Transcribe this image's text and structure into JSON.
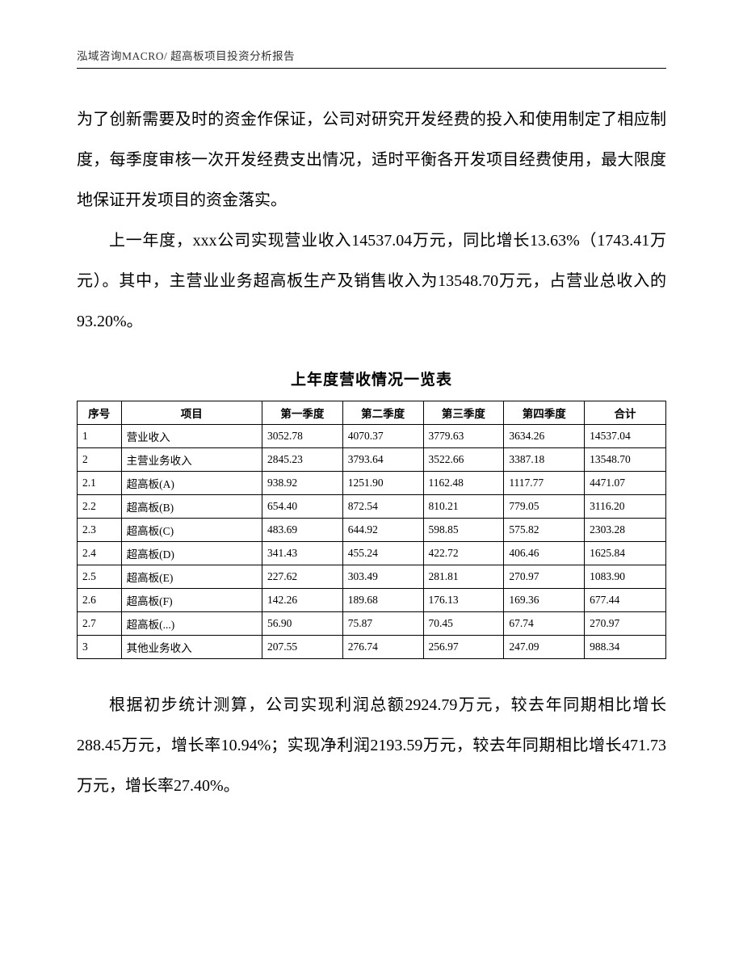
{
  "header": {
    "text": "泓域咨询MACRO/   超高板项目投资分析报告"
  },
  "paragraphs": {
    "p1": "为了创新需要及时的资金作保证，公司对研究开发经费的投入和使用制定了相应制度，每季度审核一次开发经费支出情况，适时平衡各开发项目经费使用，最大限度地保证开发项目的资金落实。",
    "p2": "上一年度，xxx公司实现营业收入14537.04万元，同比增长13.63%（1743.41万元）。其中，主营业业务超高板生产及销售收入为13548.70万元，占营业总收入的93.20%。",
    "p3": "根据初步统计测算，公司实现利润总额2924.79万元，较去年同期相比增长288.45万元，增长率10.94%；实现净利润2193.59万元，较去年同期相比增长471.73万元，增长率27.40%。"
  },
  "table": {
    "title": "上年度营收情况一览表",
    "columns": [
      "序号",
      "项目",
      "第一季度",
      "第二季度",
      "第三季度",
      "第四季度",
      "合计"
    ],
    "rows": [
      [
        "1",
        "营业收入",
        "3052.78",
        "4070.37",
        "3779.63",
        "3634.26",
        "14537.04"
      ],
      [
        "2",
        "主营业务收入",
        "2845.23",
        "3793.64",
        "3522.66",
        "3387.18",
        "13548.70"
      ],
      [
        "2.1",
        "超高板(A)",
        "938.92",
        "1251.90",
        "1162.48",
        "1117.77",
        "4471.07"
      ],
      [
        "2.2",
        "超高板(B)",
        "654.40",
        "872.54",
        "810.21",
        "779.05",
        "3116.20"
      ],
      [
        "2.3",
        "超高板(C)",
        "483.69",
        "644.92",
        "598.85",
        "575.82",
        "2303.28"
      ],
      [
        "2.4",
        "超高板(D)",
        "341.43",
        "455.24",
        "422.72",
        "406.46",
        "1625.84"
      ],
      [
        "2.5",
        "超高板(E)",
        "227.62",
        "303.49",
        "281.81",
        "270.97",
        "1083.90"
      ],
      [
        "2.6",
        "超高板(F)",
        "142.26",
        "189.68",
        "176.13",
        "169.36",
        "677.44"
      ],
      [
        "2.7",
        "超高板(...)",
        "56.90",
        "75.87",
        "70.45",
        "67.74",
        "270.97"
      ],
      [
        "3",
        "其他业务收入",
        "207.55",
        "276.74",
        "256.97",
        "247.09",
        "988.34"
      ]
    ]
  }
}
